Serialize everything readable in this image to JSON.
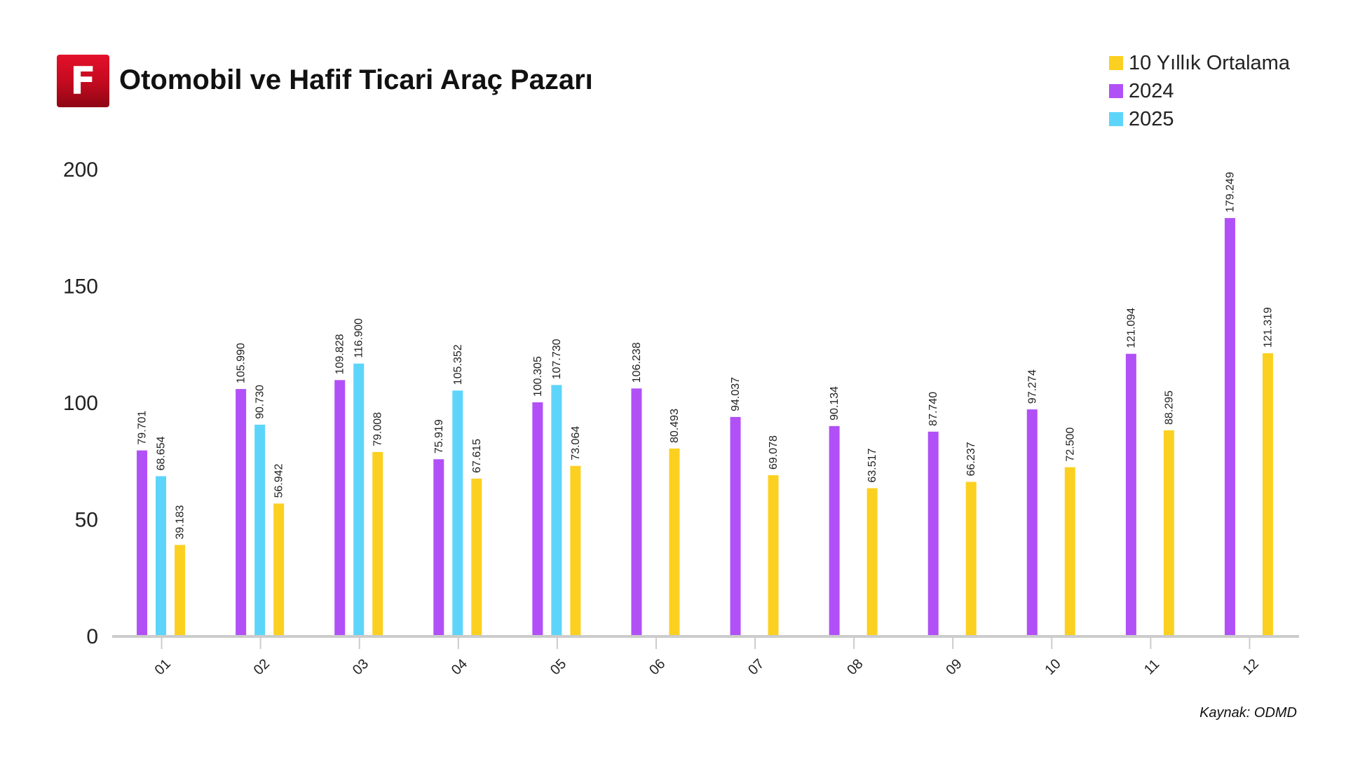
{
  "header": {
    "logo_letter": "F",
    "title": "Otomobil ve Hafif Ticari Araç Pazarı"
  },
  "legend": {
    "items": [
      {
        "label": "10 Yıllık Ortalama",
        "color": "#fcd020"
      },
      {
        "label": "2024",
        "color": "#b150f7"
      },
      {
        "label": "2025",
        "color": "#5dd5fa"
      }
    ]
  },
  "source_note": "Kaynak: ODMD",
  "chart_data": {
    "type": "bar",
    "categories": [
      "01",
      "02",
      "03",
      "04",
      "05",
      "06",
      "07",
      "08",
      "09",
      "10",
      "11",
      "12"
    ],
    "series": [
      {
        "name": "2024",
        "color": "#b150f7",
        "values": [
          79.701,
          105.99,
          109.828,
          75.919,
          100.305,
          106.238,
          94.037,
          90.134,
          87.74,
          97.274,
          121.094,
          179.249
        ],
        "labels": [
          "79.701",
          "105.990",
          "109.828",
          "75.919",
          "100.305",
          "106.238",
          "94.037",
          "90.134",
          "87.740",
          "97.274",
          "121.094",
          "179.249"
        ]
      },
      {
        "name": "2025",
        "color": "#5dd5fa",
        "values": [
          68.654,
          90.73,
          116.9,
          105.352,
          107.73,
          null,
          null,
          null,
          null,
          null,
          null,
          null
        ],
        "labels": [
          "68.654",
          "90.730",
          "116.900",
          "105.352",
          "107.730",
          null,
          null,
          null,
          null,
          null,
          null,
          null
        ]
      },
      {
        "name": "10 Yıllık Ortalama",
        "color": "#fcd020",
        "values": [
          39.183,
          56.942,
          79.008,
          67.615,
          73.064,
          80.493,
          69.078,
          63.517,
          66.237,
          72.5,
          88.295,
          121.319
        ],
        "labels": [
          "39.183",
          "56.942",
          "79.008",
          "67.615",
          "73.064",
          "80.493",
          "69.078",
          "63.517",
          "66.237",
          "72.500",
          "88.295",
          "121.319"
        ]
      }
    ],
    "yticks": [
      0,
      50,
      100,
      150,
      200
    ],
    "ylim": [
      0,
      200
    ],
    "xlabel": "",
    "ylabel": "",
    "grid": false,
    "legend_position": "top-right",
    "axis_color": "#cccccc"
  }
}
